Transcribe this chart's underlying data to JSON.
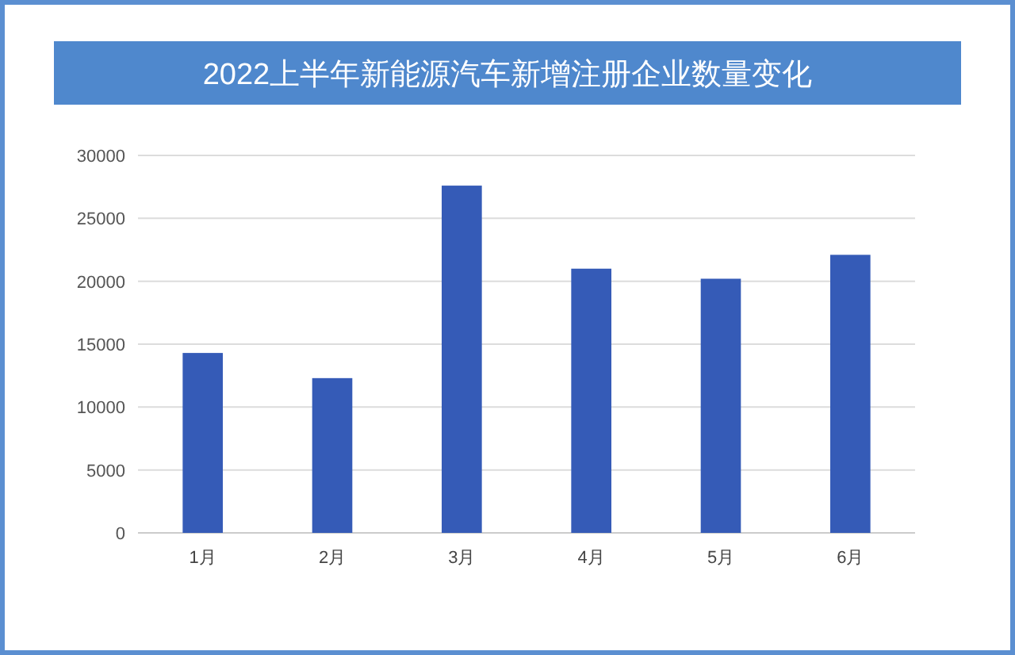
{
  "chart_data": {
    "type": "bar",
    "title": "2022上半年新能源汽车新增注册企业数量变化",
    "categories": [
      "1月",
      "2月",
      "3月",
      "4月",
      "5月",
      "6月"
    ],
    "values": [
      14300,
      12300,
      27600,
      21000,
      20200,
      22100
    ],
    "color": "#355bb7",
    "ylim": [
      0,
      30000
    ],
    "yticks": [
      0,
      5000,
      10000,
      15000,
      20000,
      25000,
      30000
    ],
    "grid": "y"
  }
}
